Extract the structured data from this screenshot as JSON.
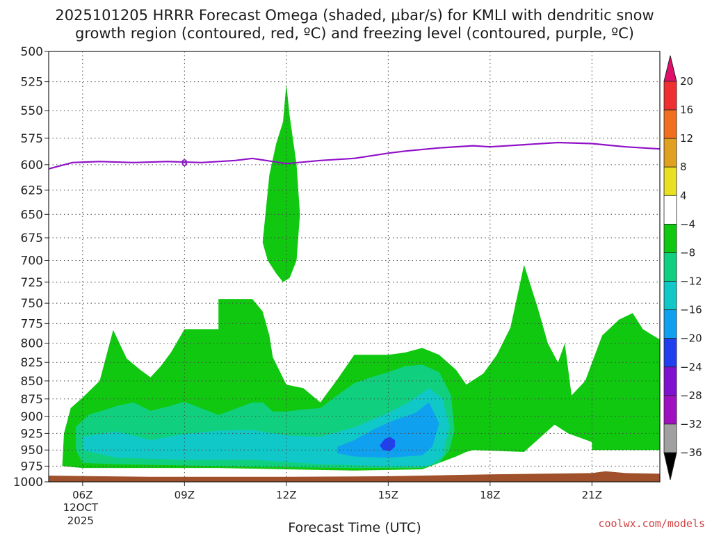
{
  "chart_data": {
    "type": "heatmap",
    "title_line1": "2025101205 HRRR Forecast Omega (shaded, μbar/s) for KMLI with dendritic snow",
    "title_line2": "growth region (contoured, red, ºC) and freezing level (contoured, purple, ºC)",
    "xlabel": "Forecast Time (UTC)",
    "x_ticks": [
      {
        "hour": 6,
        "label": "06Z",
        "sub1": "12OCT",
        "sub2": "2025"
      },
      {
        "hour": 9,
        "label": "09Z"
      },
      {
        "hour": 12,
        "label": "12Z"
      },
      {
        "hour": 15,
        "label": "15Z"
      },
      {
        "hour": 18,
        "label": "18Z"
      },
      {
        "hour": 21,
        "label": "21Z"
      }
    ],
    "x_range": [
      5.0,
      23.0
    ],
    "y_levels": [
      "500",
      "525",
      "550",
      "575",
      "600",
      "625",
      "650",
      "675",
      "700",
      "725",
      "750",
      "775",
      "800",
      "825",
      "850",
      "875",
      "900",
      "925",
      "950",
      "975",
      "1000"
    ],
    "y_range": [
      500,
      1000
    ],
    "y_scale": "log-pressure",
    "grid": true,
    "colorbar": {
      "labels": [
        "20",
        "16",
        "12",
        "8",
        "4",
        "−4",
        "−8",
        "−12",
        "−16",
        "−20",
        "−24",
        "−28",
        "−32",
        "−36"
      ],
      "colors": [
        "#e0106a",
        "#f03030",
        "#f07020",
        "#e0a020",
        "#e8e020",
        "#ffffff",
        "#10c810",
        "#10d080",
        "#10c8c8",
        "#10a0f0",
        "#2040f0",
        "#8010d0",
        "#a010c0",
        "#a0a0a0",
        "#000000"
      ]
    },
    "freezing_level": {
      "label": "0",
      "color": "#9010c8",
      "points": [
        [
          5.0,
          604
        ],
        [
          5.7,
          598
        ],
        [
          6.5,
          597
        ],
        [
          7.5,
          598
        ],
        [
          8.5,
          597
        ],
        [
          9.5,
          598
        ],
        [
          10.5,
          596
        ],
        [
          11.0,
          594
        ],
        [
          12.0,
          599
        ],
        [
          13.0,
          596
        ],
        [
          14.0,
          594
        ],
        [
          15.0,
          589
        ],
        [
          15.5,
          587
        ],
        [
          16.5,
          584
        ],
        [
          17.5,
          582
        ],
        [
          18.0,
          583
        ],
        [
          19.0,
          581
        ],
        [
          20.0,
          579
        ],
        [
          21.0,
          580
        ],
        [
          22.0,
          583
        ],
        [
          23.0,
          585
        ]
      ]
    },
    "omega_regions": [
      {
        "level": "-4",
        "color": "#10c810",
        "points": [
          [
            11.3,
            680
          ],
          [
            11.5,
            610
          ],
          [
            11.7,
            580
          ],
          [
            11.9,
            560
          ],
          [
            12.0,
            527
          ],
          [
            12.1,
            555
          ],
          [
            12.3,
            600
          ],
          [
            12.4,
            650
          ],
          [
            12.3,
            700
          ],
          [
            12.1,
            720
          ],
          [
            11.9,
            725
          ],
          [
            11.7,
            715
          ],
          [
            11.45,
            700
          ]
        ]
      },
      {
        "level": "-4",
        "color": "#10c810",
        "points": [
          [
            5.4,
            975
          ],
          [
            5.45,
            925
          ],
          [
            5.65,
            888
          ],
          [
            6.0,
            873
          ],
          [
            6.5,
            850
          ],
          [
            6.9,
            783
          ],
          [
            7.3,
            820
          ],
          [
            7.7,
            835
          ],
          [
            8.0,
            845
          ],
          [
            8.3,
            830
          ],
          [
            8.6,
            812
          ],
          [
            9.0,
            782
          ],
          [
            10.0,
            782
          ],
          [
            10.0,
            745
          ],
          [
            11.0,
            745
          ],
          [
            11.3,
            760
          ],
          [
            11.5,
            790
          ],
          [
            11.6,
            818
          ],
          [
            12.0,
            855
          ],
          [
            12.5,
            860
          ],
          [
            13.0,
            880
          ],
          [
            13.5,
            848
          ],
          [
            14.0,
            815
          ],
          [
            15.0,
            815
          ],
          [
            15.5,
            812
          ],
          [
            16.0,
            806
          ],
          [
            16.5,
            815
          ],
          [
            17.0,
            835
          ],
          [
            17.3,
            855
          ],
          [
            17.8,
            840
          ],
          [
            18.2,
            815
          ],
          [
            18.6,
            780
          ],
          [
            19.0,
            705
          ],
          [
            19.4,
            755
          ],
          [
            19.7,
            800
          ],
          [
            20.0,
            825
          ],
          [
            20.2,
            800
          ],
          [
            20.4,
            870
          ],
          [
            20.8,
            850
          ],
          [
            21.3,
            790
          ],
          [
            21.8,
            770
          ],
          [
            22.2,
            762
          ],
          [
            22.5,
            782
          ],
          [
            22.8,
            790
          ],
          [
            23.0,
            795
          ],
          [
            23.0,
            950
          ],
          [
            21.0,
            950
          ],
          [
            21.0,
            938
          ],
          [
            20.3,
            925
          ],
          [
            19.9,
            912
          ],
          [
            19.0,
            953
          ],
          [
            17.5,
            950
          ],
          [
            17.3,
            953
          ],
          [
            17.0,
            960
          ],
          [
            16.0,
            980
          ],
          [
            14.0,
            982
          ],
          [
            12.0,
            980
          ],
          [
            10.0,
            978
          ],
          [
            8.0,
            978
          ],
          [
            6.0,
            978
          ]
        ]
      },
      {
        "level": "-8",
        "color": "#10d080",
        "points": [
          [
            5.8,
            915
          ],
          [
            6.2,
            897
          ],
          [
            6.5,
            893
          ],
          [
            7.0,
            885
          ],
          [
            7.5,
            880
          ],
          [
            8.0,
            892
          ],
          [
            8.5,
            886
          ],
          [
            9.0,
            879
          ],
          [
            10.0,
            898
          ],
          [
            11.0,
            880
          ],
          [
            11.3,
            880
          ],
          [
            11.6,
            893
          ],
          [
            12.0,
            893
          ],
          [
            12.5,
            890
          ],
          [
            13.0,
            888
          ],
          [
            13.5,
            870
          ],
          [
            14.0,
            853
          ],
          [
            14.5,
            845
          ],
          [
            15.0,
            838
          ],
          [
            15.5,
            830
          ],
          [
            16.0,
            828
          ],
          [
            16.5,
            838
          ],
          [
            16.85,
            870
          ],
          [
            16.95,
            920
          ],
          [
            16.8,
            950
          ],
          [
            16.5,
            970
          ],
          [
            16.0,
            978
          ],
          [
            14.0,
            978
          ],
          [
            10.0,
            975
          ],
          [
            7.0,
            972
          ],
          [
            6.0,
            970
          ],
          [
            5.8,
            950
          ]
        ]
      },
      {
        "level": "-12",
        "color": "#10c8c8",
        "points": [
          [
            6.0,
            930
          ],
          [
            7.0,
            922
          ],
          [
            8.0,
            935
          ],
          [
            9.0,
            926
          ],
          [
            10.0,
            921
          ],
          [
            11.0,
            920
          ],
          [
            12.0,
            928
          ],
          [
            13.0,
            930
          ],
          [
            14.0,
            916
          ],
          [
            15.0,
            895
          ],
          [
            15.6,
            880
          ],
          [
            16.2,
            860
          ],
          [
            16.6,
            875
          ],
          [
            16.8,
            915
          ],
          [
            16.6,
            960
          ],
          [
            16.2,
            975
          ],
          [
            15.0,
            975
          ],
          [
            13.0,
            972
          ],
          [
            11.0,
            965
          ],
          [
            9.0,
            965
          ],
          [
            7.0,
            962
          ],
          [
            6.0,
            950
          ]
        ]
      },
      {
        "level": "-16",
        "color": "#10a0f0",
        "points": [
          [
            13.5,
            945
          ],
          [
            14.0,
            935
          ],
          [
            14.6,
            918
          ],
          [
            15.2,
            905
          ],
          [
            15.8,
            895
          ],
          [
            16.2,
            880
          ],
          [
            16.5,
            910
          ],
          [
            16.3,
            945
          ],
          [
            16.0,
            958
          ],
          [
            15.0,
            962
          ],
          [
            14.0,
            960
          ],
          [
            13.5,
            955
          ]
        ]
      },
      {
        "level": "-20",
        "color": "#2040f0",
        "points": [
          [
            14.75,
            943
          ],
          [
            14.9,
            933
          ],
          [
            15.05,
            930
          ],
          [
            15.2,
            935
          ],
          [
            15.2,
            945
          ],
          [
            15.05,
            952
          ],
          [
            14.85,
            950
          ]
        ]
      }
    ],
    "terrain": {
      "color": "#a0502a",
      "top_points": [
        [
          5.0,
          990
        ],
        [
          8.0,
          992
        ],
        [
          12.0,
          992
        ],
        [
          15.0,
          991
        ],
        [
          18.0,
          988
        ],
        [
          21.0,
          986
        ],
        [
          21.4,
          983
        ],
        [
          22.0,
          986
        ],
        [
          23.0,
          987
        ]
      ]
    }
  },
  "credit": "coolwx.com/models"
}
